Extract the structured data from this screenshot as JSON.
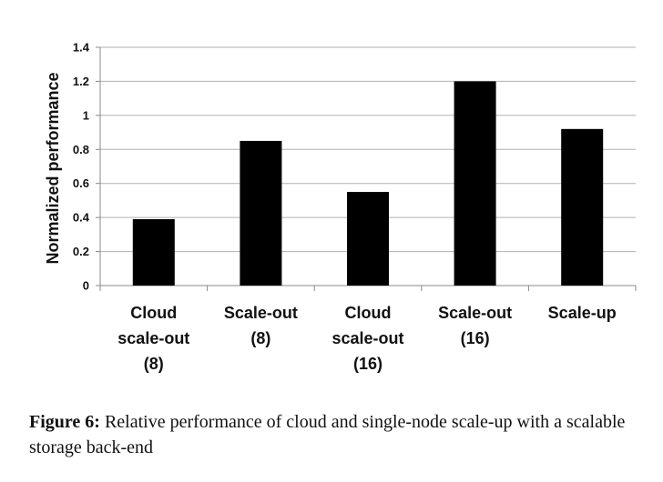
{
  "chart_data": {
    "type": "bar",
    "categories": [
      [
        "Cloud",
        "scale-out",
        "(8)"
      ],
      [
        "Scale-out",
        "(8)"
      ],
      [
        "Cloud",
        "scale-out",
        "(16)"
      ],
      [
        "Scale-out",
        "(16)"
      ],
      [
        "Scale-up"
      ]
    ],
    "values": [
      0.39,
      0.85,
      0.55,
      1.2,
      0.92
    ],
    "ylabel": "Normalized performance",
    "xlabel": "",
    "ylim": [
      0,
      1.4
    ],
    "yticks": [
      "0",
      "0.2",
      "0.4",
      "0.6",
      "0.8",
      "1",
      "1.2",
      "1.4"
    ],
    "grid": true,
    "bar_color": "#000000",
    "grid_color": "#b0b0b0"
  },
  "caption": {
    "label": "Figure 6:",
    "text": " Relative performance of cloud and single-node scale-up with a scalable storage back-end"
  }
}
